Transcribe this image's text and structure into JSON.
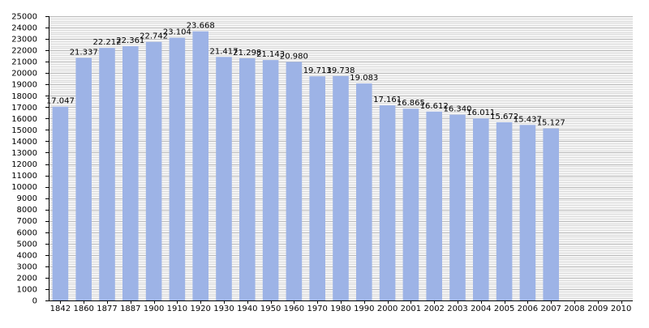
{
  "chart_data": {
    "type": "bar",
    "title": "",
    "xlabel": "",
    "ylabel": "",
    "ylim": [
      0,
      25000
    ],
    "y_major_step": 1000,
    "y_minor_step": 200,
    "grid": true,
    "legend": "none",
    "categories": [
      "1842",
      "1860",
      "1877",
      "1887",
      "1900",
      "1910",
      "1920",
      "1930",
      "1940",
      "1950",
      "1960",
      "1970",
      "1980",
      "1990",
      "2000",
      "2001",
      "2002",
      "2003",
      "2004",
      "2005",
      "2006",
      "2007",
      "2008",
      "2009",
      "2010"
    ],
    "values": [
      17047,
      21337,
      22212,
      22361,
      22742,
      23104,
      23668,
      21417,
      21298,
      21143,
      20980,
      19713,
      19738,
      19083,
      17161,
      16865,
      16612,
      16340,
      16011,
      15672,
      15437,
      15127,
      null,
      null,
      null
    ],
    "value_labels": [
      "17.047",
      "21.337",
      "22.212",
      "22.361",
      "22.742",
      "23.104",
      "23.668",
      "21.417",
      "21.298",
      "21.143",
      "20.980",
      "19.713",
      "19.738",
      "19.083",
      "17.161",
      "16.865",
      "16.612",
      "16.340",
      "16.011",
      "15.672",
      "15.437",
      "15.127",
      "",
      "",
      ""
    ],
    "colors": {
      "bar": "#9db3e6",
      "background": "#ffffff",
      "plot_background": "#f4f4f4",
      "grid_major": "#bcbcbc",
      "grid_minor": "#dddddd",
      "axis": "#000000"
    }
  }
}
